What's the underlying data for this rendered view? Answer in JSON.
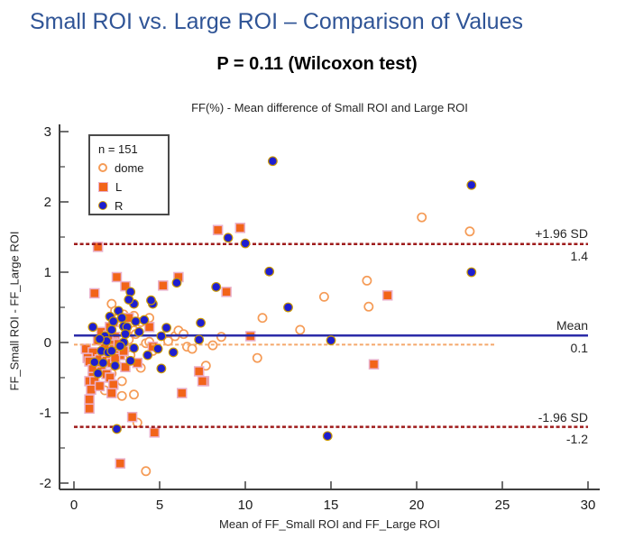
{
  "header": {
    "title": "Small ROI vs. Large ROI – Comparison of Values",
    "subtitle": "P = 0.11 (Wilcoxon test)"
  },
  "chart": {
    "title": "FF(%) - Mean difference of Small ROI and Large ROI",
    "xlabel": "Mean of FF_Small ROI and FF_Large ROI",
    "ylabel": "FF_Small ROI - FF_Large ROI",
    "legend": {
      "n_label": "n = 151",
      "items": [
        {
          "id": "dome",
          "label": "dome"
        },
        {
          "id": "L",
          "label": "L"
        },
        {
          "id": "R",
          "label": "R"
        }
      ]
    },
    "annotations": {
      "upper": {
        "label": "+1.96 SD",
        "value": "1.4"
      },
      "mean": {
        "label": "Mean",
        "value": "0.1"
      },
      "lower": {
        "label": "-1.96 SD",
        "value": "-1.2"
      }
    }
  },
  "colors": {
    "title_blue": "#2F5496",
    "axis": "#3f3f3f",
    "sd_line": "#9E1B1B",
    "mean_line": "#2B2BA8",
    "dome_mean_line": "#F5A86B",
    "dome_marker": "#F59B56",
    "L_marker": "#F26419",
    "L_marker_edge": "#E9AFC9",
    "R_marker": "#1E1ECF",
    "R_marker_edge": "#C99700"
  },
  "chart_data": {
    "type": "scatter",
    "title": "FF(%) - Mean difference of Small ROI and Large ROI",
    "xlabel": "Mean of FF_Small ROI and FF_Large ROI",
    "ylabel": "FF_Small ROI - FF_Large ROI",
    "n": 151,
    "xlim": [
      0,
      30.7
    ],
    "ylim": [
      -2.1,
      3.1
    ],
    "x_ticks": [
      0,
      5,
      10,
      15,
      20,
      25,
      30
    ],
    "y_ticks": [
      3,
      2,
      1,
      0,
      -1,
      -2
    ],
    "y_minor_ticks": [
      2.5,
      1.5,
      0.5,
      -0.5,
      -1.5
    ],
    "grid": false,
    "legend_position": "upper-left",
    "hlines": [
      {
        "name": "upper-loa",
        "label": "+1.96 SD",
        "value": 1.4,
        "style": "dashed",
        "color": "#9E1B1B",
        "x_start": 0,
        "x_end": 30,
        "width": 2.5
      },
      {
        "name": "mean",
        "label": "Mean",
        "value": 0.1,
        "style": "solid",
        "color": "#2B2BA8",
        "x_start": 0,
        "x_end": 30,
        "width": 2.5
      },
      {
        "name": "dome-mean",
        "label": "",
        "value": -0.03,
        "style": "dashed",
        "color": "#F5A86B",
        "x_start": 0,
        "x_end": 24.6,
        "width": 2
      },
      {
        "name": "lower-loa",
        "label": "-1.96 SD",
        "value": -1.2,
        "style": "dashed",
        "color": "#9E1B1B",
        "x_start": 0,
        "x_end": 30,
        "width": 2.5
      }
    ],
    "series": [
      {
        "name": "dome",
        "marker": "open-circle",
        "color": "#F59B56",
        "edge": "#F59B56",
        "points": [
          [
            2.2,
            0.55
          ],
          [
            2.4,
            0.45
          ],
          [
            2.6,
            0.35
          ],
          [
            2.9,
            0.4
          ],
          [
            3.5,
            0.38
          ],
          [
            3.9,
            0.29
          ],
          [
            3.5,
            0.17
          ],
          [
            3.2,
            0.04
          ],
          [
            3.6,
            0.12
          ],
          [
            4.2,
            -0.01
          ],
          [
            4.4,
            0.35
          ],
          [
            4.4,
            0.01
          ],
          [
            5.5,
            0.02
          ],
          [
            5.9,
            0.09
          ],
          [
            6.1,
            0.17
          ],
          [
            6.4,
            0.12
          ],
          [
            6.6,
            -0.06
          ],
          [
            6.9,
            -0.09
          ],
          [
            2.5,
            -0.32
          ],
          [
            3.1,
            -0.09
          ],
          [
            3.3,
            -0.18
          ],
          [
            3.9,
            -0.36
          ],
          [
            4.6,
            -0.12
          ],
          [
            2.2,
            -0.44
          ],
          [
            1.8,
            -0.68
          ],
          [
            2.8,
            -0.55
          ],
          [
            2.8,
            -0.76
          ],
          [
            3.5,
            -0.74
          ],
          [
            3.7,
            -1.14
          ],
          [
            4.2,
            -1.83
          ],
          [
            8.6,
            0.08
          ],
          [
            8.1,
            -0.04
          ],
          [
            7.7,
            -0.33
          ],
          [
            10.7,
            -0.22
          ],
          [
            11.0,
            0.35
          ],
          [
            13.2,
            0.18
          ],
          [
            14.6,
            0.65
          ],
          [
            17.1,
            0.88
          ],
          [
            17.2,
            0.51
          ],
          [
            20.3,
            1.78
          ],
          [
            23.1,
            1.58
          ]
        ]
      },
      {
        "name": "L",
        "marker": "square",
        "color": "#F26419",
        "edge": "#E9AFC9",
        "points": [
          [
            1.4,
            1.36
          ],
          [
            8.4,
            1.6
          ],
          [
            9.7,
            1.63
          ],
          [
            2.5,
            0.93
          ],
          [
            3.0,
            0.8
          ],
          [
            1.2,
            0.7
          ],
          [
            5.2,
            0.81
          ],
          [
            6.1,
            0.93
          ],
          [
            8.9,
            0.72
          ],
          [
            18.3,
            0.67
          ],
          [
            2.3,
            0.29
          ],
          [
            3.2,
            0.35
          ],
          [
            4.4,
            0.22
          ],
          [
            2.4,
            0.08
          ],
          [
            1.4,
            0.03
          ],
          [
            2.3,
            0.0
          ],
          [
            1.6,
            0.15
          ],
          [
            2.0,
            0.1
          ],
          [
            2.1,
            0.22
          ],
          [
            0.7,
            -0.09
          ],
          [
            1.1,
            -0.14
          ],
          [
            1.7,
            -0.17
          ],
          [
            2.5,
            -0.14
          ],
          [
            2.7,
            -0.18
          ],
          [
            2.6,
            -0.02
          ],
          [
            1.8,
            -0.08
          ],
          [
            4.6,
            -0.06
          ],
          [
            0.8,
            -0.22
          ],
          [
            0.9,
            -0.27
          ],
          [
            1.5,
            -0.24
          ],
          [
            1.9,
            -0.26
          ],
          [
            2.2,
            -0.29
          ],
          [
            2.4,
            -0.22
          ],
          [
            2.9,
            -0.12
          ],
          [
            3.7,
            -0.29
          ],
          [
            3.0,
            -0.35
          ],
          [
            1.3,
            -0.33
          ],
          [
            1.1,
            -0.38
          ],
          [
            1.6,
            -0.41
          ],
          [
            1.9,
            -0.45
          ],
          [
            1.1,
            -0.49
          ],
          [
            2.1,
            -0.5
          ],
          [
            7.3,
            -0.41
          ],
          [
            7.6,
            -0.55
          ],
          [
            10.3,
            0.09
          ],
          [
            17.5,
            -0.31
          ],
          [
            0.9,
            -0.55
          ],
          [
            1.2,
            -0.55
          ],
          [
            1.0,
            -0.67
          ],
          [
            1.5,
            -0.62
          ],
          [
            2.3,
            -0.6
          ],
          [
            2.2,
            -0.72
          ],
          [
            0.9,
            -0.81
          ],
          [
            0.9,
            -0.94
          ],
          [
            6.3,
            -0.72
          ],
          [
            7.5,
            -0.55
          ],
          [
            3.4,
            -1.06
          ],
          [
            4.7,
            -1.28
          ],
          [
            2.7,
            -1.72
          ]
        ]
      },
      {
        "name": "R",
        "marker": "circle",
        "color": "#1E1ECF",
        "edge": "#C99700",
        "points": [
          [
            11.6,
            2.58
          ],
          [
            23.2,
            2.24
          ],
          [
            9.0,
            1.49
          ],
          [
            10.0,
            1.41
          ],
          [
            11.4,
            1.01
          ],
          [
            23.2,
            1.0
          ],
          [
            3.3,
            0.72
          ],
          [
            3.5,
            0.55
          ],
          [
            4.6,
            0.55
          ],
          [
            6.0,
            0.85
          ],
          [
            8.3,
            0.79
          ],
          [
            12.5,
            0.5
          ],
          [
            3.2,
            0.61
          ],
          [
            4.5,
            0.6
          ],
          [
            2.1,
            0.37
          ],
          [
            2.6,
            0.45
          ],
          [
            2.8,
            0.35
          ],
          [
            1.1,
            0.22
          ],
          [
            2.9,
            0.23
          ],
          [
            3.1,
            0.22
          ],
          [
            2.3,
            0.3
          ],
          [
            4.1,
            0.32
          ],
          [
            5.4,
            0.21
          ],
          [
            7.4,
            0.28
          ],
          [
            1.8,
            0.09
          ],
          [
            5.1,
            0.09
          ],
          [
            2.9,
            0.0
          ],
          [
            1.9,
            0.02
          ],
          [
            3.8,
            0.15
          ],
          [
            2.2,
            0.18
          ],
          [
            3.0,
            0.12
          ],
          [
            3.6,
            0.3
          ],
          [
            1.5,
            0.05
          ],
          [
            15.0,
            0.03
          ],
          [
            7.3,
            0.04
          ],
          [
            1.6,
            -0.12
          ],
          [
            2.0,
            -0.14
          ],
          [
            2.2,
            -0.12
          ],
          [
            2.7,
            -0.05
          ],
          [
            3.5,
            -0.08
          ],
          [
            4.9,
            -0.09
          ],
          [
            5.8,
            -0.14
          ],
          [
            1.2,
            -0.28
          ],
          [
            1.7,
            -0.29
          ],
          [
            3.3,
            -0.26
          ],
          [
            2.4,
            -0.33
          ],
          [
            4.3,
            -0.18
          ],
          [
            1.4,
            -0.44
          ],
          [
            5.1,
            -0.37
          ],
          [
            2.5,
            -1.23
          ],
          [
            14.8,
            -1.33
          ]
        ]
      }
    ]
  }
}
